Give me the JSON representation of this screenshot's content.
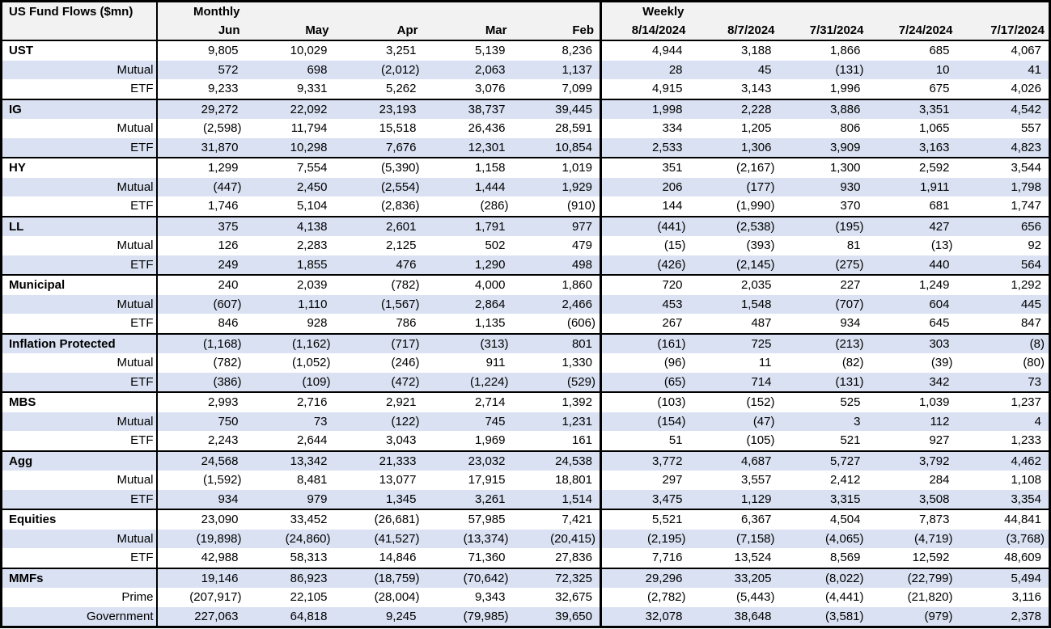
{
  "table": {
    "title": "US Fund Flows ($mn)",
    "monthly_label": "Monthly",
    "weekly_label": "Weekly",
    "monthly_columns": [
      "Jun",
      "May",
      "Apr",
      "Mar",
      "Feb"
    ],
    "weekly_columns": [
      "8/14/2024",
      "8/7/2024",
      "7/31/2024",
      "7/24/2024",
      "7/17/2024"
    ],
    "colors": {
      "band": "#d9e1f2",
      "header_bg": "#f2f2f2",
      "border": "#000000",
      "text": "#000000"
    },
    "groups": [
      {
        "rows": [
          {
            "label": "UST",
            "type": "category",
            "monthly": [
              "9,805",
              "10,029",
              "3,251",
              "5,139",
              "8,236"
            ],
            "weekly": [
              "4,944",
              "3,188",
              "1,866",
              "685",
              "4,067"
            ]
          },
          {
            "label": "Mutual",
            "type": "sub",
            "monthly": [
              "572",
              "698",
              "(2,012)",
              "2,063",
              "1,137"
            ],
            "weekly": [
              "28",
              "45",
              "(131)",
              "10",
              "41"
            ]
          },
          {
            "label": "ETF",
            "type": "sub",
            "monthly": [
              "9,233",
              "9,331",
              "5,262",
              "3,076",
              "7,099"
            ],
            "weekly": [
              "4,915",
              "3,143",
              "1,996",
              "675",
              "4,026"
            ]
          }
        ]
      },
      {
        "rows": [
          {
            "label": "IG",
            "type": "category",
            "monthly": [
              "29,272",
              "22,092",
              "23,193",
              "38,737",
              "39,445"
            ],
            "weekly": [
              "1,998",
              "2,228",
              "3,886",
              "3,351",
              "4,542"
            ]
          },
          {
            "label": "Mutual",
            "type": "sub",
            "monthly": [
              "(2,598)",
              "11,794",
              "15,518",
              "26,436",
              "28,591"
            ],
            "weekly": [
              "334",
              "1,205",
              "806",
              "1,065",
              "557"
            ]
          },
          {
            "label": "ETF",
            "type": "sub",
            "monthly": [
              "31,870",
              "10,298",
              "7,676",
              "12,301",
              "10,854"
            ],
            "weekly": [
              "2,533",
              "1,306",
              "3,909",
              "3,163",
              "4,823"
            ]
          }
        ]
      },
      {
        "rows": [
          {
            "label": "HY",
            "type": "category",
            "monthly": [
              "1,299",
              "7,554",
              "(5,390)",
              "1,158",
              "1,019"
            ],
            "weekly": [
              "351",
              "(2,167)",
              "1,300",
              "2,592",
              "3,544"
            ]
          },
          {
            "label": "Mutual",
            "type": "sub",
            "monthly": [
              "(447)",
              "2,450",
              "(2,554)",
              "1,444",
              "1,929"
            ],
            "weekly": [
              "206",
              "(177)",
              "930",
              "1,911",
              "1,798"
            ]
          },
          {
            "label": "ETF",
            "type": "sub",
            "monthly": [
              "1,746",
              "5,104",
              "(2,836)",
              "(286)",
              "(910)"
            ],
            "weekly": [
              "144",
              "(1,990)",
              "370",
              "681",
              "1,747"
            ]
          }
        ]
      },
      {
        "rows": [
          {
            "label": "LL",
            "type": "category",
            "monthly": [
              "375",
              "4,138",
              "2,601",
              "1,791",
              "977"
            ],
            "weekly": [
              "(441)",
              "(2,538)",
              "(195)",
              "427",
              "656"
            ]
          },
          {
            "label": "Mutual",
            "type": "sub",
            "monthly": [
              "126",
              "2,283",
              "2,125",
              "502",
              "479"
            ],
            "weekly": [
              "(15)",
              "(393)",
              "81",
              "(13)",
              "92"
            ]
          },
          {
            "label": "ETF",
            "type": "sub",
            "monthly": [
              "249",
              "1,855",
              "476",
              "1,290",
              "498"
            ],
            "weekly": [
              "(426)",
              "(2,145)",
              "(275)",
              "440",
              "564"
            ]
          }
        ]
      },
      {
        "rows": [
          {
            "label": "Municipal",
            "type": "category",
            "monthly": [
              "240",
              "2,039",
              "(782)",
              "4,000",
              "1,860"
            ],
            "weekly": [
              "720",
              "2,035",
              "227",
              "1,249",
              "1,292"
            ]
          },
          {
            "label": "Mutual",
            "type": "sub",
            "monthly": [
              "(607)",
              "1,110",
              "(1,567)",
              "2,864",
              "2,466"
            ],
            "weekly": [
              "453",
              "1,548",
              "(707)",
              "604",
              "445"
            ]
          },
          {
            "label": "ETF",
            "type": "sub",
            "monthly": [
              "846",
              "928",
              "786",
              "1,135",
              "(606)"
            ],
            "weekly": [
              "267",
              "487",
              "934",
              "645",
              "847"
            ]
          }
        ]
      },
      {
        "rows": [
          {
            "label": "Inflation Protected",
            "type": "category",
            "monthly": [
              "(1,168)",
              "(1,162)",
              "(717)",
              "(313)",
              "801"
            ],
            "weekly": [
              "(161)",
              "725",
              "(213)",
              "303",
              "(8)"
            ]
          },
          {
            "label": "Mutual",
            "type": "sub",
            "monthly": [
              "(782)",
              "(1,052)",
              "(246)",
              "911",
              "1,330"
            ],
            "weekly": [
              "(96)",
              "11",
              "(82)",
              "(39)",
              "(80)"
            ]
          },
          {
            "label": "ETF",
            "type": "sub",
            "monthly": [
              "(386)",
              "(109)",
              "(472)",
              "(1,224)",
              "(529)"
            ],
            "weekly": [
              "(65)",
              "714",
              "(131)",
              "342",
              "73"
            ]
          }
        ]
      },
      {
        "rows": [
          {
            "label": "MBS",
            "type": "category",
            "monthly": [
              "2,993",
              "2,716",
              "2,921",
              "2,714",
              "1,392"
            ],
            "weekly": [
              "(103)",
              "(152)",
              "525",
              "1,039",
              "1,237"
            ]
          },
          {
            "label": "Mutual",
            "type": "sub",
            "monthly": [
              "750",
              "73",
              "(122)",
              "745",
              "1,231"
            ],
            "weekly": [
              "(154)",
              "(47)",
              "3",
              "112",
              "4"
            ]
          },
          {
            "label": "ETF",
            "type": "sub",
            "monthly": [
              "2,243",
              "2,644",
              "3,043",
              "1,969",
              "161"
            ],
            "weekly": [
              "51",
              "(105)",
              "521",
              "927",
              "1,233"
            ]
          }
        ]
      },
      {
        "rows": [
          {
            "label": "Agg",
            "type": "category",
            "monthly": [
              "24,568",
              "13,342",
              "21,333",
              "23,032",
              "24,538"
            ],
            "weekly": [
              "3,772",
              "4,687",
              "5,727",
              "3,792",
              "4,462"
            ]
          },
          {
            "label": "Mutual",
            "type": "sub",
            "monthly": [
              "(1,592)",
              "8,481",
              "13,077",
              "17,915",
              "18,801"
            ],
            "weekly": [
              "297",
              "3,557",
              "2,412",
              "284",
              "1,108"
            ]
          },
          {
            "label": "ETF",
            "type": "sub",
            "monthly": [
              "934",
              "979",
              "1,345",
              "3,261",
              "1,514"
            ],
            "weekly": [
              "3,475",
              "1,129",
              "3,315",
              "3,508",
              "3,354"
            ]
          }
        ]
      },
      {
        "rows": [
          {
            "label": "Equities",
            "type": "category",
            "monthly": [
              "23,090",
              "33,452",
              "(26,681)",
              "57,985",
              "7,421"
            ],
            "weekly": [
              "5,521",
              "6,367",
              "4,504",
              "7,873",
              "44,841"
            ]
          },
          {
            "label": "Mutual",
            "type": "sub",
            "monthly": [
              "(19,898)",
              "(24,860)",
              "(41,527)",
              "(13,374)",
              "(20,415)"
            ],
            "weekly": [
              "(2,195)",
              "(7,158)",
              "(4,065)",
              "(4,719)",
              "(3,768)"
            ]
          },
          {
            "label": "ETF",
            "type": "sub",
            "monthly": [
              "42,988",
              "58,313",
              "14,846",
              "71,360",
              "27,836"
            ],
            "weekly": [
              "7,716",
              "13,524",
              "8,569",
              "12,592",
              "48,609"
            ]
          }
        ]
      },
      {
        "rows": [
          {
            "label": "MMFs",
            "type": "category",
            "monthly": [
              "19,146",
              "86,923",
              "(18,759)",
              "(70,642)",
              "72,325"
            ],
            "weekly": [
              "29,296",
              "33,205",
              "(8,022)",
              "(22,799)",
              "5,494"
            ]
          },
          {
            "label": "Prime",
            "type": "sub",
            "monthly": [
              "(207,917)",
              "22,105",
              "(28,004)",
              "9,343",
              "32,675"
            ],
            "weekly": [
              "(2,782)",
              "(5,443)",
              "(4,441)",
              "(21,820)",
              "3,116"
            ]
          },
          {
            "label": "Government",
            "type": "sub",
            "monthly": [
              "227,063",
              "64,818",
              "9,245",
              "(79,985)",
              "39,650"
            ],
            "weekly": [
              "32,078",
              "38,648",
              "(3,581)",
              "(979)",
              "2,378"
            ]
          }
        ]
      }
    ]
  }
}
